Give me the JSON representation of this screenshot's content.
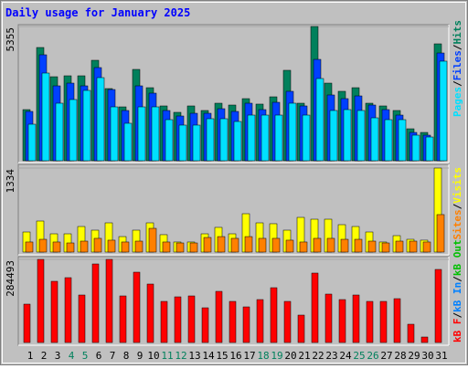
{
  "title": "Daily usage for January 2025",
  "chart_data": [
    {
      "type": "bar",
      "ylim": [
        0,
        5355
      ],
      "yticks": [
        5355
      ],
      "legend_separator": "/",
      "series": [
        {
          "name": "Hits",
          "color": "#00805c",
          "values": [
            2040,
            4517,
            3351,
            3388,
            3388,
            4007,
            2878,
            2149,
            3643,
            2914,
            2186,
            1931,
            2186,
            2004,
            2295,
            2222,
            2477,
            2259,
            2550,
            3607,
            2295,
            5355,
            3096,
            2769,
            2914,
            2295,
            2186,
            2004,
            1275,
            1129,
            4663
          ]
        },
        {
          "name": "Files",
          "color": "#0040ff",
          "values": [
            1967,
            4226,
            2987,
            3096,
            2987,
            3716,
            2841,
            2004,
            2987,
            2696,
            2004,
            1785,
            1894,
            1894,
            2076,
            1967,
            2295,
            2040,
            2331,
            2769,
            2186,
            4043,
            2623,
            2477,
            2586,
            2222,
            2040,
            1821,
            1129,
            1020,
            4298
          ]
        },
        {
          "name": "Pages",
          "color": "#00e0ff",
          "values": [
            1457,
            3497,
            2295,
            2441,
            2805,
            3315,
            2149,
            1494,
            2149,
            2149,
            1639,
            1421,
            1421,
            1676,
            1676,
            1566,
            1821,
            1821,
            1821,
            2295,
            1821,
            3279,
            2004,
            2040,
            2004,
            1712,
            1639,
            1639,
            1020,
            947,
            3971
          ]
        }
      ]
    },
    {
      "type": "bar",
      "ylim": [
        0,
        1334
      ],
      "yticks": [
        1334
      ],
      "legend_separator": "/",
      "series": [
        {
          "name": "Visits",
          "color": "#ffff00",
          "values": [
            319,
            493,
            290,
            290,
            406,
            348,
            464,
            246,
            348,
            464,
            276,
            160,
            160,
            290,
            392,
            290,
            609,
            464,
            450,
            348,
            551,
            522,
            522,
            435,
            406,
            319,
            160,
            261,
            203,
            189,
            1334
          ]
        },
        {
          "name": "Sites",
          "color": "#ff8000",
          "values": [
            160,
            203,
            160,
            145,
            174,
            218,
            189,
            160,
            174,
            377,
            160,
            145,
            145,
            232,
            246,
            218,
            246,
            218,
            218,
            189,
            160,
            218,
            218,
            203,
            203,
            174,
            145,
            174,
            174,
            160,
            595
          ]
        }
      ]
    },
    {
      "type": "bar",
      "ylim": [
        0,
        284493
      ],
      "yticks": [
        284493
      ],
      "legend_separator": "/",
      "categories": [
        "1",
        "2",
        "3",
        "4",
        "5",
        "6",
        "7",
        "8",
        "9",
        "10",
        "11",
        "12",
        "13",
        "14",
        "15",
        "16",
        "17",
        "18",
        "19",
        "20",
        "21",
        "22",
        "23",
        "24",
        "25",
        "26",
        "27",
        "28",
        "29",
        "30",
        "31"
      ],
      "x_label_colors": [
        "#000000",
        "#000000",
        "#000000",
        "#00805c",
        "#00805c",
        "#000000",
        "#000000",
        "#000000",
        "#000000",
        "#000000",
        "#00805c",
        "#00805c",
        "#000000",
        "#000000",
        "#000000",
        "#000000",
        "#000000",
        "#00805c",
        "#00805c",
        "#000000",
        "#000000",
        "#000000",
        "#000000",
        "#000000",
        "#00805c",
        "#00805c",
        "#000000",
        "#000000",
        "#000000",
        "#000000",
        "#000000"
      ],
      "series": [
        {
          "name": "kB F",
          "color": "#ff0000",
          "values": [
            131303,
            284493,
            209463,
            221969,
            162568,
            268862,
            284493,
            159442,
            240724,
            200083,
            140683,
            156315,
            159442,
            118799,
            175073,
            140683,
            121926,
            146935,
            187578,
            140683,
            93789,
            237598,
            165694,
            146935,
            162568,
            140683,
            140683,
            150063,
            62526,
            18758,
            250104
          ]
        }
      ],
      "legend": [
        {
          "name": "kB F",
          "color": "#ff0000"
        },
        {
          "name": "kB In",
          "color": "#0080ff"
        },
        {
          "name": "kB Out",
          "color": "#00c000"
        }
      ]
    }
  ]
}
